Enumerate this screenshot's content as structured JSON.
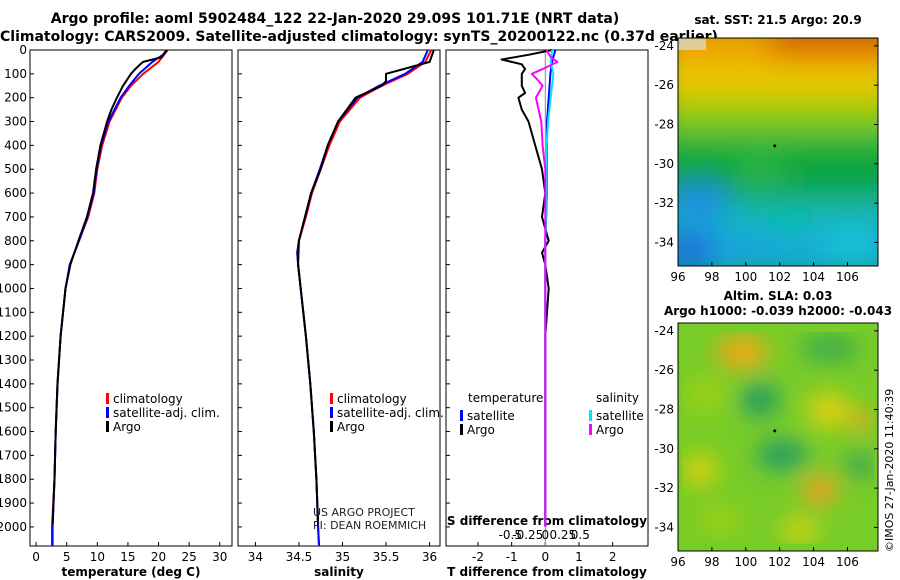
{
  "header": {
    "line1": "Argo profile: aoml 5902484_122 22-Jan-2020 29.09S 101.71E (NRT data)",
    "line2": "Climatology: CARS2009. Satellite-adjusted climatology: synTS_20200122.nc (0.37d earlier)"
  },
  "colors": {
    "climatology": "#ff0000",
    "satellite_adj": "#0000ff",
    "argo": "#000000",
    "s_satellite": "#00e5ff",
    "s_argo": "#ff00ff"
  },
  "chart_data": [
    {
      "type": "line",
      "name": "temperature-profile",
      "xlabel": "temperature (deg C)",
      "ylabel": "",
      "xlim": [
        -1,
        32
      ],
      "ylim": [
        2080,
        0
      ],
      "xticks": [
        "0",
        "5",
        "10",
        "15",
        "20",
        "25",
        "30"
      ],
      "xtick_values": [
        0,
        5,
        10,
        15,
        20,
        25,
        30
      ],
      "yticks": [
        "0",
        "100",
        "200",
        "300",
        "400",
        "500",
        "600",
        "700",
        "800",
        "900",
        "1000",
        "1100",
        "1200",
        "1300",
        "1400",
        "1500",
        "1600",
        "1700",
        "1800",
        "1900",
        "2000"
      ],
      "ytick_values": [
        0,
        100,
        200,
        300,
        400,
        500,
        600,
        700,
        800,
        900,
        1000,
        1100,
        1200,
        1300,
        1400,
        1500,
        1600,
        1700,
        1800,
        1900,
        2000
      ],
      "legend": [
        "climatology",
        "satellite-adj. clim.",
        "Argo"
      ],
      "series": [
        {
          "name": "climatology",
          "color": "#ff0000",
          "depth": [
            0,
            50,
            100,
            150,
            200,
            300,
            400,
            500,
            600,
            700,
            800,
            900,
            1000,
            1200,
            1400,
            1600,
            1800,
            2000,
            2080
          ],
          "values": [
            21.5,
            20,
            17.5,
            15.5,
            14,
            12,
            10.8,
            10,
            9.5,
            8.5,
            7,
            5.5,
            4.8,
            4,
            3.5,
            3.2,
            3,
            2.6,
            2.6
          ]
        },
        {
          "name": "satellite-adj. clim.",
          "color": "#0000ff",
          "depth": [
            0,
            20,
            50,
            100,
            150,
            200,
            300,
            400,
            500,
            600,
            700,
            800,
            900,
            1000,
            1200,
            1400,
            1600,
            1800,
            2000,
            2080
          ],
          "values": [
            21.3,
            20.7,
            19,
            16.8,
            15.2,
            13.8,
            11.8,
            10.6,
            9.9,
            9.4,
            8.4,
            7,
            5.5,
            4.8,
            4,
            3.5,
            3.2,
            3,
            2.7,
            2.7
          ]
        },
        {
          "name": "Argo",
          "color": "#000000",
          "depth": [
            0,
            30,
            50,
            60,
            80,
            100,
            150,
            200,
            250,
            300,
            400,
            500,
            600,
            700,
            800,
            900,
            1000,
            1200,
            1400,
            1600,
            1800,
            1990
          ],
          "values": [
            21.4,
            20.5,
            17.5,
            17,
            16.2,
            15.5,
            14.2,
            13.2,
            12.3,
            11.6,
            10.5,
            9.8,
            9.3,
            8.3,
            6.9,
            5.6,
            4.8,
            4,
            3.5,
            3.2,
            3,
            2.7
          ]
        }
      ]
    },
    {
      "type": "line",
      "name": "salinity-profile",
      "xlabel": "salinity",
      "xlim": [
        33.8,
        36.12
      ],
      "ylim": [
        2080,
        0
      ],
      "xticks": [
        "34",
        "34.5",
        "35",
        "35.5",
        "36"
      ],
      "xtick_values": [
        34,
        34.5,
        35,
        35.5,
        36
      ],
      "legend": [
        "climatology",
        "satellite-adj. clim.",
        "Argo"
      ],
      "annotation": [
        "US ARGO PROJECT",
        "PI: DEAN ROEMMICH"
      ],
      "series": [
        {
          "name": "climatology",
          "color": "#ff0000",
          "depth": [
            0,
            50,
            100,
            150,
            200,
            300,
            400,
            500,
            600,
            700,
            800,
            850,
            900,
            1000,
            1200,
            1400,
            1600,
            1800,
            2000,
            2080
          ],
          "values": [
            36.02,
            35.95,
            35.75,
            35.45,
            35.2,
            34.97,
            34.85,
            34.75,
            34.65,
            34.58,
            34.5,
            34.48,
            34.49,
            34.52,
            34.58,
            34.63,
            34.67,
            34.7,
            34.72,
            34.73
          ]
        },
        {
          "name": "satellite-adj. clim.",
          "color": "#0000ff",
          "depth": [
            0,
            50,
            100,
            150,
            200,
            300,
            400,
            500,
            600,
            700,
            800,
            850,
            900,
            1000,
            1200,
            1400,
            1600,
            1800,
            2000,
            2080
          ],
          "values": [
            35.98,
            35.92,
            35.72,
            35.42,
            35.17,
            34.95,
            34.83,
            34.74,
            34.64,
            34.57,
            34.5,
            34.48,
            34.49,
            34.52,
            34.58,
            34.63,
            34.67,
            34.7,
            34.72,
            34.73
          ]
        },
        {
          "name": "Argo",
          "color": "#000000",
          "depth": [
            0,
            50,
            80,
            100,
            130,
            150,
            200,
            250,
            300,
            400,
            500,
            600,
            700,
            800,
            900,
            1000,
            1200,
            1400,
            1600,
            1800,
            1990
          ],
          "values": [
            36.05,
            36.0,
            35.7,
            35.5,
            35.5,
            35.45,
            35.15,
            35.05,
            34.95,
            34.83,
            34.75,
            34.64,
            34.57,
            34.5,
            34.49,
            34.52,
            34.58,
            34.63,
            34.67,
            34.7,
            34.72
          ]
        }
      ]
    },
    {
      "type": "line",
      "name": "difference-profile",
      "xlabel": "T difference from climatology",
      "xlabel_top": "S difference from climatology",
      "xlim": [
        -2.95,
        3.05
      ],
      "ylim": [
        2080,
        0
      ],
      "xticks": [
        "-2",
        "-1",
        "0",
        "1",
        "2"
      ],
      "xtick_values": [
        -2,
        -1,
        0,
        1,
        2
      ],
      "sticks": [
        "-0.5",
        "-0.25",
        "0",
        "0.25",
        "0.5"
      ],
      "stick_values": [
        -0.5,
        -0.25,
        0,
        0.25,
        0.5
      ],
      "legend_left_title": "temperature",
      "legend_right_title": "salinity",
      "legend_left": [
        "satellite",
        "Argo"
      ],
      "legend_right": [
        "satellite",
        "Argo"
      ],
      "series": [
        {
          "name": "T satellite",
          "color": "#0000ff",
          "depth": [
            0,
            50,
            100,
            200,
            300,
            400,
            600,
            800,
            1000,
            1500,
            2000
          ],
          "values": [
            0.3,
            0.2,
            0.15,
            0.1,
            0.05,
            0.05,
            0.05,
            0,
            0,
            0,
            0
          ]
        },
        {
          "name": "T Argo",
          "color": "#000000",
          "depth": [
            0,
            20,
            40,
            50,
            60,
            80,
            100,
            150,
            180,
            200,
            250,
            300,
            400,
            500,
            600,
            700,
            800,
            850,
            900,
            1000,
            1200,
            1500,
            1800,
            1990
          ],
          "values": [
            0.2,
            -0.5,
            -1.3,
            -1.0,
            -0.7,
            -0.6,
            -0.7,
            -0.7,
            -0.6,
            -0.8,
            -0.7,
            -0.5,
            -0.3,
            -0.1,
            0,
            -0.1,
            0.1,
            -0.1,
            0,
            0.1,
            0,
            0,
            0,
            0
          ]
        },
        {
          "name": "S satellite",
          "color": "#00e5ff",
          "depth": [
            0,
            50,
            100,
            200,
            300,
            400,
            600,
            800,
            1000,
            1500,
            2000
          ],
          "values": [
            0.05,
            0.04,
            0.06,
            0.04,
            0.02,
            0.01,
            0.01,
            0,
            0,
            0,
            0
          ]
        },
        {
          "name": "S Argo",
          "color": "#ff00ff",
          "depth": [
            0,
            30,
            50,
            80,
            100,
            130,
            150,
            200,
            250,
            300,
            400,
            500,
            600,
            800,
            1000,
            1500,
            2000
          ],
          "values": [
            0.01,
            0.04,
            0.09,
            -0.02,
            -0.1,
            -0.05,
            -0.02,
            -0.07,
            -0.05,
            -0.03,
            -0.02,
            0,
            0,
            0,
            0,
            0,
            0
          ]
        }
      ]
    },
    {
      "type": "heatmap",
      "name": "sst-map",
      "title": "sat. SST: 21.5 Argo: 20.9",
      "xlim": [
        96,
        107.8
      ],
      "ylim": [
        -35.2,
        -23.6
      ],
      "xticks": [
        "96",
        "98",
        "100",
        "102",
        "104",
        "106"
      ],
      "xtick_values": [
        96,
        98,
        100,
        102,
        104,
        106
      ],
      "yticks": [
        "-24",
        "-26",
        "-28",
        "-30",
        "-32",
        "-34"
      ],
      "ytick_values": [
        -24,
        -26,
        -28,
        -30,
        -32,
        -34
      ]
    },
    {
      "type": "heatmap",
      "name": "sla-map",
      "title": "Altim. SLA: 0.03",
      "subtitle": "Argo h1000: -0.039 h2000: -0.043",
      "xlim": [
        96,
        107.8
      ],
      "ylim": [
        -35.2,
        -23.6
      ],
      "xticks": [
        "96",
        "98",
        "100",
        "102",
        "104",
        "106"
      ],
      "xtick_values": [
        96,
        98,
        100,
        102,
        104,
        106
      ],
      "yticks": [
        "-24",
        "-26",
        "-28",
        "-30",
        "-32",
        "-34"
      ],
      "ytick_values": [
        -24,
        -26,
        -28,
        -30,
        -32,
        -34
      ]
    }
  ],
  "credit": "©IMOS 27-Jan-2020 11:40:39"
}
